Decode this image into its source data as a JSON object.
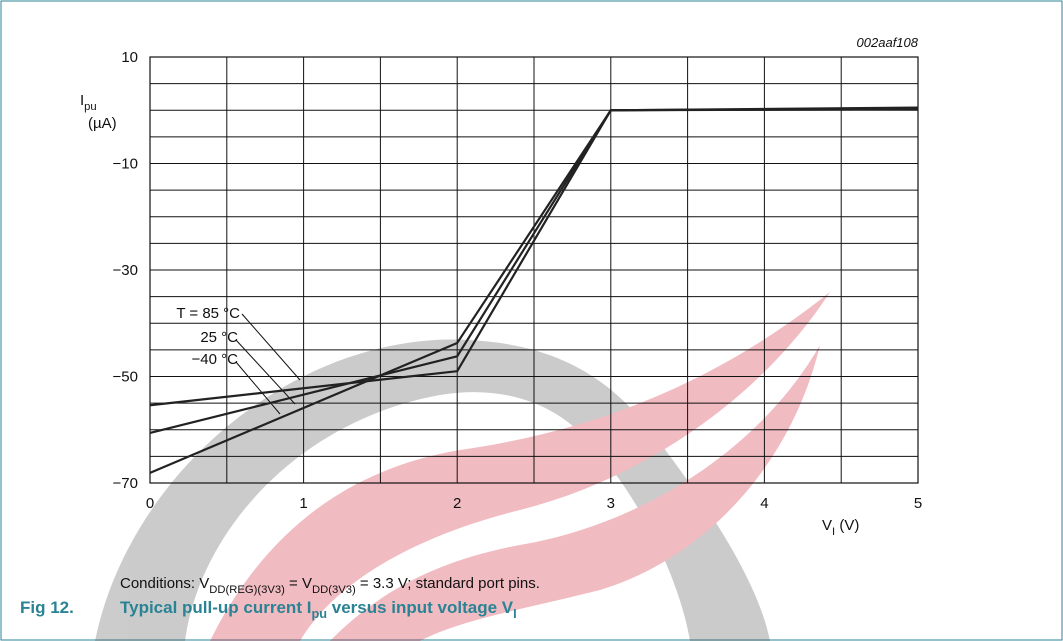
{
  "chart_data": {
    "type": "line",
    "code": "002aaf108",
    "y_label": [
      "I",
      "pu",
      "(µA)"
    ],
    "x_label": [
      "V",
      "I",
      " (V)"
    ],
    "annotations": [
      "T = 85 °C",
      "25 °C",
      "−40 °C"
    ],
    "conditions": [
      "Conditions: V",
      "DD(REG)(3V3)",
      " = V",
      "DD(3V3)",
      " = 3.3 V; standard port pins."
    ],
    "figure_label": "Fig 12.",
    "title": [
      "Typical pull-up current I",
      "pu",
      " versus input voltage V",
      "I"
    ],
    "x": [
      0,
      2,
      3,
      5
    ],
    "series": [
      {
        "name": "T = 85 °C",
        "color": "#222222",
        "values": [
          -55.4,
          -49.0,
          0,
          0.5
        ]
      },
      {
        "name": "25 °C",
        "color": "#222222",
        "values": [
          -60.6,
          -46.2,
          0,
          0.3
        ]
      },
      {
        "name": "−40 °C",
        "color": "#222222",
        "values": [
          -68.1,
          -43.7,
          0,
          0.2
        ]
      }
    ],
    "xlim": [
      0,
      5
    ],
    "ylim": [
      -70,
      10
    ],
    "xticks": [
      0,
      1,
      2,
      3,
      4,
      5
    ],
    "yticks": [
      10,
      {
        "value": -10,
        "label": "−10"
      },
      {
        "value": -30,
        "label": "−30"
      },
      {
        "value": -50,
        "label": "−50"
      },
      {
        "value": -70,
        "label": "−70"
      }
    ],
    "xgrid": [
      0.5,
      1.5,
      2.5,
      3.5,
      4.5
    ],
    "ygrid": [
      5,
      0,
      -5,
      -15,
      -20,
      -25,
      -35,
      -40,
      -45,
      -55,
      -60,
      -65
    ],
    "grid": true
  }
}
